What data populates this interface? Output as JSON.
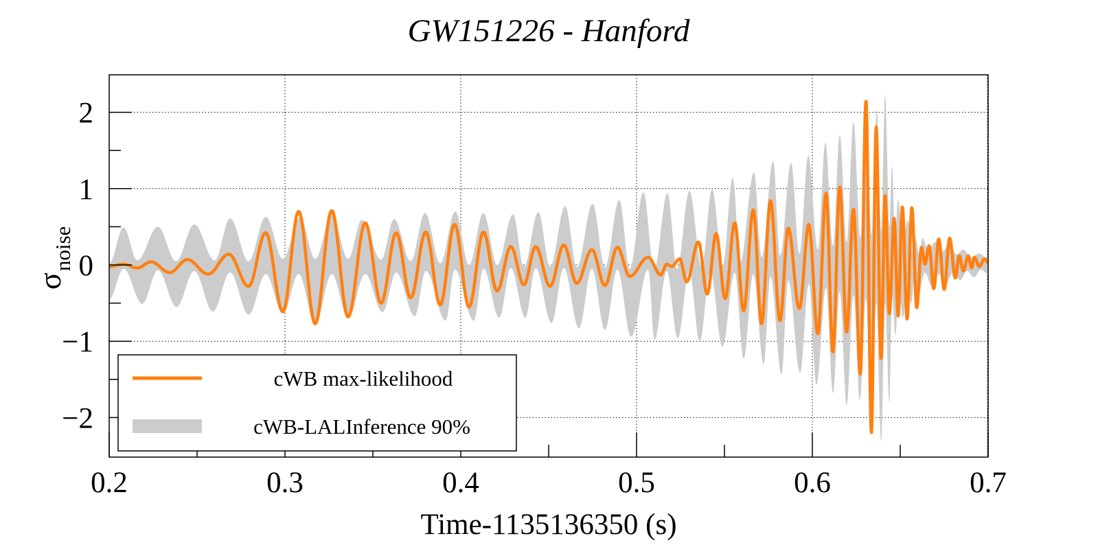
{
  "chart_data": {
    "type": "line",
    "title": "GW151226 - Hanford",
    "xlabel": "Time-1135136350 (s)",
    "ylabel_main": "σ",
    "ylabel_sub": "noise",
    "xlim": [
      0.2,
      0.7
    ],
    "ylim": [
      -2.5,
      2.5
    ],
    "xticks": [
      0.2,
      0.3,
      0.4,
      0.5,
      0.6,
      0.7
    ],
    "xtick_labels": [
      "0.2",
      "0.3",
      "0.4",
      "0.5",
      "0.6",
      "0.7"
    ],
    "xminor": [
      0.25,
      0.35,
      0.45,
      0.55,
      0.65
    ],
    "yticks": [
      -2,
      -1,
      0,
      1,
      2
    ],
    "ytick_labels": [
      "−2",
      "−1",
      "0",
      "1",
      "2"
    ],
    "yminor": [
      -1.5,
      -0.5,
      0.5,
      1.5
    ],
    "grid": true,
    "legend_position": "bottom-left",
    "colors": {
      "maxl": "#ff8010",
      "band": "#cccccc",
      "axis": "#000000"
    },
    "series": [
      {
        "name": "cWB max-likelihood",
        "kind": "line",
        "points": [
          [
            0.2,
            -0.02
          ],
          [
            0.2082,
            0.01
          ],
          [
            0.216,
            -0.04
          ],
          [
            0.2238,
            0.04
          ],
          [
            0.2344,
            -0.1
          ],
          [
            0.2445,
            0.07
          ],
          [
            0.2563,
            -0.12
          ],
          [
            0.268,
            0.14
          ],
          [
            0.2793,
            -0.28
          ],
          [
            0.289,
            0.42
          ],
          [
            0.2988,
            -0.61
          ],
          [
            0.3078,
            0.7
          ],
          [
            0.3172,
            -0.77
          ],
          [
            0.3266,
            0.71
          ],
          [
            0.3359,
            -0.68
          ],
          [
            0.3457,
            0.55
          ],
          [
            0.3547,
            -0.5
          ],
          [
            0.3633,
            0.42
          ],
          [
            0.3715,
            -0.43
          ],
          [
            0.3801,
            0.43
          ],
          [
            0.3883,
            -0.52
          ],
          [
            0.3965,
            0.53
          ],
          [
            0.4047,
            -0.55
          ],
          [
            0.4129,
            0.43
          ],
          [
            0.4207,
            -0.34
          ],
          [
            0.4285,
            0.24
          ],
          [
            0.4359,
            -0.26
          ],
          [
            0.4426,
            0.24
          ],
          [
            0.4508,
            -0.28
          ],
          [
            0.4586,
            0.26
          ],
          [
            0.466,
            -0.24
          ],
          [
            0.4746,
            0.2
          ],
          [
            0.482,
            -0.27
          ],
          [
            0.4891,
            0.23
          ],
          [
            0.4961,
            -0.15
          ],
          [
            0.5066,
            0.1
          ],
          [
            0.5137,
            -0.13
          ],
          [
            0.5172,
            0.01
          ],
          [
            0.52,
            -0.02
          ],
          [
            0.5246,
            0.08
          ],
          [
            0.5285,
            -0.22
          ],
          [
            0.5352,
            0.3
          ],
          [
            0.5402,
            -0.38
          ],
          [
            0.5453,
            0.41
          ],
          [
            0.5504,
            -0.44
          ],
          [
            0.5559,
            0.55
          ],
          [
            0.5609,
            -0.6
          ],
          [
            0.5664,
            0.72
          ],
          [
            0.5711,
            -0.77
          ],
          [
            0.5762,
            0.84
          ],
          [
            0.5816,
            -0.73
          ],
          [
            0.5863,
            0.48
          ],
          [
            0.5926,
            -0.57
          ],
          [
            0.598,
            0.53
          ],
          [
            0.6031,
            -0.9
          ],
          [
            0.6078,
            0.94
          ],
          [
            0.6117,
            -1.14
          ],
          [
            0.6156,
            1.02
          ],
          [
            0.6195,
            -0.88
          ],
          [
            0.6234,
            0.73
          ],
          [
            0.6273,
            -1.43
          ],
          [
            0.6305,
            2.15
          ],
          [
            0.6336,
            -2.2
          ],
          [
            0.6363,
            1.81
          ],
          [
            0.6391,
            -1.23
          ],
          [
            0.6414,
            0.91
          ],
          [
            0.6438,
            -0.64
          ],
          [
            0.6465,
            0.61
          ],
          [
            0.6488,
            -0.67
          ],
          [
            0.6512,
            0.76
          ],
          [
            0.6539,
            -0.71
          ],
          [
            0.6566,
            0.75
          ],
          [
            0.6594,
            -0.56
          ],
          [
            0.6621,
            0.23
          ],
          [
            0.6641,
            0.01
          ],
          [
            0.6664,
            0.25
          ],
          [
            0.6691,
            -0.31
          ],
          [
            0.6719,
            0.34
          ],
          [
            0.675,
            -0.32
          ],
          [
            0.6781,
            0.35
          ],
          [
            0.6813,
            -0.17
          ],
          [
            0.6836,
            0.12
          ],
          [
            0.6859,
            -0.08
          ],
          [
            0.6887,
            0.12
          ],
          [
            0.6906,
            -0.04
          ],
          [
            0.6922,
            0.1
          ],
          [
            0.695,
            -0.02
          ],
          [
            0.698,
            0.08
          ],
          [
            0.7,
            0.03
          ]
        ]
      },
      {
        "name": "cWB-LALInference 90%",
        "kind": "band",
        "upper": [
          [
            0.2,
            0.02
          ],
          [
            0.2082,
            0.49
          ],
          [
            0.216,
            0.06
          ],
          [
            0.2277,
            0.5
          ],
          [
            0.238,
            0.05
          ],
          [
            0.2484,
            0.53
          ],
          [
            0.26,
            0.06
          ],
          [
            0.2688,
            0.61
          ],
          [
            0.2793,
            0.05
          ],
          [
            0.2891,
            0.63
          ],
          [
            0.2988,
            0.08
          ],
          [
            0.3086,
            0.62
          ],
          [
            0.3172,
            0.08
          ],
          [
            0.3266,
            0.66
          ],
          [
            0.3359,
            0.08
          ],
          [
            0.3437,
            0.59
          ],
          [
            0.3547,
            0.07
          ],
          [
            0.3621,
            0.6
          ],
          [
            0.3715,
            0.05
          ],
          [
            0.3797,
            0.68
          ],
          [
            0.3883,
            0.02
          ],
          [
            0.3969,
            0.7
          ],
          [
            0.4047,
            0.0
          ],
          [
            0.4129,
            0.68
          ],
          [
            0.4207,
            0.0
          ],
          [
            0.4297,
            0.66
          ],
          [
            0.4359,
            -0.02
          ],
          [
            0.4441,
            0.69
          ],
          [
            0.4508,
            -0.02
          ],
          [
            0.4594,
            0.77
          ],
          [
            0.466,
            -0.03
          ],
          [
            0.475,
            0.8
          ],
          [
            0.482,
            -0.03
          ],
          [
            0.4902,
            0.85
          ],
          [
            0.4961,
            -0.05
          ],
          [
            0.5039,
            0.95
          ],
          [
            0.51,
            -0.05
          ],
          [
            0.5176,
            0.94
          ],
          [
            0.523,
            -0.05
          ],
          [
            0.5301,
            0.97
          ],
          [
            0.537,
            -0.02
          ],
          [
            0.543,
            0.99
          ],
          [
            0.549,
            0.0
          ],
          [
            0.5547,
            1.14
          ],
          [
            0.559,
            0.05
          ],
          [
            0.5668,
            1.21
          ],
          [
            0.5711,
            0.1
          ],
          [
            0.5777,
            1.36
          ],
          [
            0.5816,
            0.12
          ],
          [
            0.5879,
            1.34
          ],
          [
            0.5926,
            0.15
          ],
          [
            0.5977,
            1.43
          ],
          [
            0.6031,
            0.2
          ],
          [
            0.6074,
            1.6
          ],
          [
            0.6117,
            0.25
          ],
          [
            0.6156,
            1.7
          ],
          [
            0.6195,
            0.3
          ],
          [
            0.6234,
            1.88
          ],
          [
            0.6273,
            0.35
          ],
          [
            0.6305,
            2.17
          ],
          [
            0.6336,
            0.4
          ],
          [
            0.6367,
            2.04
          ],
          [
            0.6391,
            0.45
          ],
          [
            0.6414,
            2.23
          ],
          [
            0.6438,
            0.5
          ],
          [
            0.6453,
            1.3
          ],
          [
            0.647,
            0.4
          ],
          [
            0.6488,
            0.86
          ],
          [
            0.6512,
            0.3
          ],
          [
            0.6543,
            0.59
          ],
          [
            0.657,
            0.15
          ],
          [
            0.6586,
            0.35
          ],
          [
            0.661,
            0.12
          ],
          [
            0.6625,
            0.35
          ],
          [
            0.666,
            0.2
          ],
          [
            0.67,
            0.3
          ],
          [
            0.674,
            0.18
          ],
          [
            0.678,
            0.28
          ],
          [
            0.682,
            0.14
          ],
          [
            0.686,
            0.2
          ],
          [
            0.69,
            0.1
          ],
          [
            0.695,
            0.15
          ],
          [
            0.7,
            0.08
          ]
        ],
        "lower": [
          [
            0.2,
            -0.45
          ],
          [
            0.2082,
            -0.05
          ],
          [
            0.2188,
            -0.51
          ],
          [
            0.2277,
            -0.07
          ],
          [
            0.2383,
            -0.55
          ],
          [
            0.2484,
            -0.08
          ],
          [
            0.259,
            -0.61
          ],
          [
            0.2688,
            -0.1
          ],
          [
            0.2793,
            -0.65
          ],
          [
            0.2891,
            -0.12
          ],
          [
            0.2988,
            -0.64
          ],
          [
            0.3078,
            -0.12
          ],
          [
            0.3172,
            -0.78
          ],
          [
            0.3266,
            -0.12
          ],
          [
            0.3359,
            -0.69
          ],
          [
            0.3457,
            -0.12
          ],
          [
            0.3555,
            -0.62
          ],
          [
            0.3633,
            -0.1
          ],
          [
            0.3738,
            -0.67
          ],
          [
            0.3801,
            -0.08
          ],
          [
            0.3914,
            -0.73
          ],
          [
            0.3965,
            -0.06
          ],
          [
            0.4074,
            -0.73
          ],
          [
            0.4129,
            -0.05
          ],
          [
            0.4219,
            -0.69
          ],
          [
            0.4285,
            -0.04
          ],
          [
            0.4367,
            -0.69
          ],
          [
            0.4426,
            -0.04
          ],
          [
            0.4516,
            -0.76
          ],
          [
            0.4586,
            -0.04
          ],
          [
            0.4672,
            -0.83
          ],
          [
            0.4746,
            -0.05
          ],
          [
            0.482,
            -0.85
          ],
          [
            0.4891,
            -0.06
          ],
          [
            0.4969,
            -0.94
          ],
          [
            0.5066,
            -0.06
          ],
          [
            0.5102,
            -0.98
          ],
          [
            0.5172,
            -0.08
          ],
          [
            0.5234,
            -0.96
          ],
          [
            0.53,
            -0.08
          ],
          [
            0.5359,
            -1.0
          ],
          [
            0.542,
            -0.08
          ],
          [
            0.5488,
            -1.07
          ],
          [
            0.5559,
            -0.1
          ],
          [
            0.5609,
            -1.23
          ],
          [
            0.5664,
            -0.12
          ],
          [
            0.5723,
            -1.3
          ],
          [
            0.5762,
            -0.15
          ],
          [
            0.5824,
            -1.43
          ],
          [
            0.5863,
            -0.2
          ],
          [
            0.593,
            -1.41
          ],
          [
            0.598,
            -0.25
          ],
          [
            0.6023,
            -1.57
          ],
          [
            0.6078,
            -0.3
          ],
          [
            0.6117,
            -1.68
          ],
          [
            0.6156,
            -0.35
          ],
          [
            0.6195,
            -1.84
          ],
          [
            0.6234,
            -0.4
          ],
          [
            0.627,
            -1.77
          ],
          [
            0.6305,
            -0.45
          ],
          [
            0.6336,
            -2.22
          ],
          [
            0.6363,
            -0.5
          ],
          [
            0.6391,
            -2.31
          ],
          [
            0.6414,
            -0.5
          ],
          [
            0.6438,
            -1.81
          ],
          [
            0.6453,
            -0.4
          ],
          [
            0.6473,
            -0.92
          ],
          [
            0.649,
            -0.3
          ],
          [
            0.6516,
            -0.69
          ],
          [
            0.654,
            -0.2
          ],
          [
            0.6563,
            -0.51
          ],
          [
            0.658,
            -0.15
          ],
          [
            0.6602,
            -0.4
          ],
          [
            0.664,
            -0.1
          ],
          [
            0.668,
            -0.28
          ],
          [
            0.672,
            -0.12
          ],
          [
            0.676,
            -0.25
          ],
          [
            0.68,
            -0.1
          ],
          [
            0.684,
            -0.2
          ],
          [
            0.688,
            -0.08
          ],
          [
            0.692,
            -0.16
          ],
          [
            0.696,
            -0.06
          ],
          [
            0.7,
            -0.12
          ]
        ]
      }
    ]
  }
}
